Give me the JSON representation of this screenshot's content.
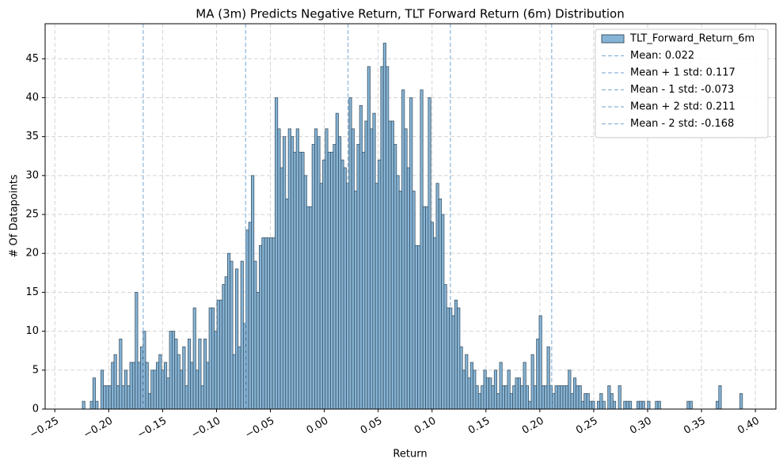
{
  "chart_data": {
    "type": "histogram",
    "title": "MA (3m) Predicts Negative Return, TLT Forward Return (6m) Distribution",
    "x_label": "Return",
    "y_label": "# Of Datapoints",
    "series": [
      {
        "name": "TLT_Forward_Return_6m",
        "color": "#86b4d6",
        "edgecolor": "#3d5566",
        "bins": [
          -0.2245,
          -0.22205,
          -0.2196,
          -0.21715,
          -0.2147,
          -0.21225,
          -0.2098,
          -0.20735,
          -0.2049,
          -0.20245,
          -0.2,
          -0.19755,
          -0.1951,
          -0.19265,
          -0.1902,
          -0.18775,
          -0.1853,
          -0.18285,
          -0.1804,
          -0.17795,
          -0.1755,
          -0.17305,
          -0.1706,
          -0.16815,
          -0.1657,
          -0.16325,
          -0.1608,
          -0.15835,
          -0.1559,
          -0.15345,
          -0.151,
          -0.14855,
          -0.1461,
          -0.14365,
          -0.1412,
          -0.13875,
          -0.1363,
          -0.13385,
          -0.1314,
          -0.12895,
          -0.1265,
          -0.12405,
          -0.1216,
          -0.11915,
          -0.1167,
          -0.11425,
          -0.1118,
          -0.10935,
          -0.1069,
          -0.10445,
          -0.102,
          -0.09955,
          -0.0971,
          -0.09465,
          -0.0922,
          -0.08975,
          -0.0873,
          -0.08485,
          -0.0824,
          -0.07995,
          -0.0775,
          -0.07505,
          -0.0726,
          -0.07015,
          -0.0677,
          -0.06525,
          -0.0628,
          -0.06035,
          -0.0579,
          -0.05545,
          -0.053,
          -0.05055,
          -0.0481,
          -0.04565,
          -0.0432,
          -0.04075,
          -0.0383,
          -0.03585,
          -0.0334,
          -0.03095,
          -0.0285,
          -0.02605,
          -0.0236,
          -0.02115,
          -0.0187,
          -0.01625,
          -0.0138,
          -0.01135,
          -0.0089,
          -0.00645,
          -0.004,
          -0.00155,
          0.0009,
          0.00335,
          0.0058,
          0.00825,
          0.0107,
          0.01315,
          0.0156,
          0.01805,
          0.0205,
          0.02295,
          0.0254,
          0.02785,
          0.0303,
          0.03275,
          0.0352,
          0.03765,
          0.0401,
          0.04255,
          0.045,
          0.04745,
          0.0499,
          0.05235,
          0.0548,
          0.05725,
          0.0597,
          0.06215,
          0.0646,
          0.06705,
          0.0695,
          0.07195,
          0.0744,
          0.07685,
          0.0793,
          0.08175,
          0.0842,
          0.08665,
          0.0891,
          0.09155,
          0.094,
          0.09645,
          0.0989,
          0.10135,
          0.1038,
          0.10625,
          0.1087,
          0.11115,
          0.1136,
          0.11605,
          0.1185,
          0.12095,
          0.1234,
          0.12585,
          0.1283,
          0.13075,
          0.1332,
          0.13565,
          0.1381,
          0.14055,
          0.143,
          0.14545,
          0.1479,
          0.15035,
          0.1528,
          0.15525,
          0.1577,
          0.16015,
          0.1626,
          0.16505,
          0.1675,
          0.16995,
          0.1724,
          0.17485,
          0.1773,
          0.17975,
          0.1822,
          0.18465,
          0.1871,
          0.18955,
          0.192,
          0.19445,
          0.1969,
          0.19935,
          0.2018,
          0.20425,
          0.2067,
          0.20915,
          0.2116,
          0.21405,
          0.2165,
          0.21895,
          0.2214,
          0.22385,
          0.2263,
          0.22875,
          0.2312,
          0.23365,
          0.2361,
          0.23855,
          0.241,
          0.24345,
          0.2459,
          0.24835,
          0.2508,
          0.25325,
          0.2557,
          0.25815,
          0.2606,
          0.26305,
          0.2655,
          0.26795,
          0.2704,
          0.27285,
          0.2753,
          0.27775,
          0.2802,
          0.28265,
          0.2851,
          0.28755,
          0.29,
          0.29245,
          0.2949,
          0.29735,
          0.2998,
          0.30225,
          0.3047,
          0.30715,
          0.3096,
          0.31205,
          0.3145,
          0.31695,
          0.3194,
          0.32185,
          0.3243,
          0.32675,
          0.3292,
          0.33165,
          0.3341,
          0.33655,
          0.339,
          0.34145,
          0.3439,
          0.34635,
          0.3488,
          0.35125,
          0.3537,
          0.35615,
          0.3586,
          0.36105,
          0.3635,
          0.36595,
          0.3684,
          0.37085,
          0.3733,
          0.37575,
          0.3782,
          0.38065,
          0.3831,
          0.38555,
          0.388
        ],
        "values": [
          1,
          0,
          0,
          1,
          4,
          1,
          0,
          5,
          3,
          3,
          3,
          6,
          7,
          3,
          9,
          3,
          5,
          3,
          6,
          6,
          15,
          6,
          8,
          10,
          6,
          2,
          5,
          5,
          6,
          7,
          5,
          6,
          4,
          10,
          10,
          9,
          7,
          5,
          8,
          3,
          9,
          6,
          13,
          5,
          9,
          3,
          9,
          6,
          13,
          13,
          10,
          14,
          14,
          16,
          17,
          20,
          19,
          7,
          18,
          8,
          19,
          11,
          23,
          24,
          30,
          19,
          15,
          21,
          22,
          22,
          22,
          22,
          22,
          40,
          36,
          31,
          35,
          27,
          36,
          35,
          33,
          36,
          33,
          33,
          30,
          26,
          26,
          34,
          36,
          35,
          29,
          32,
          36,
          33,
          33,
          34,
          38,
          35,
          32,
          31,
          29,
          40,
          36,
          28,
          34,
          39,
          33,
          37,
          44,
          36,
          38,
          29,
          32,
          44,
          47,
          44,
          37,
          37,
          34,
          30,
          28,
          41,
          36,
          31,
          40,
          28,
          21,
          21,
          41,
          26,
          26,
          40,
          24,
          22,
          29,
          27,
          25,
          16,
          13,
          13,
          12,
          14,
          13,
          8,
          5,
          7,
          4,
          6,
          5,
          3,
          2,
          3,
          5,
          4,
          4,
          3,
          5,
          2,
          6,
          3,
          3,
          5,
          2,
          3,
          4,
          4,
          3,
          6,
          3,
          1,
          7,
          3,
          9,
          12,
          3,
          3,
          8,
          3,
          2,
          3,
          3,
          3,
          3,
          3,
          5,
          2,
          4,
          3,
          3,
          1,
          2,
          2,
          1,
          1,
          0,
          1,
          2,
          1,
          0,
          3,
          2,
          1,
          0,
          3,
          0,
          1,
          1,
          1,
          0,
          0,
          1,
          1,
          1,
          0,
          1,
          0,
          0,
          1,
          1,
          0,
          0,
          0,
          0,
          0,
          0,
          0,
          0,
          0,
          0,
          1,
          1,
          0,
          0,
          0,
          0,
          0,
          0,
          0,
          0,
          0,
          1,
          3,
          0,
          0,
          0,
          0,
          0,
          0,
          0,
          2
        ]
      }
    ],
    "vlines": [
      {
        "name": "Mean: 0.022",
        "value": 0.022,
        "color": "#8ab4d8"
      },
      {
        "name": "Mean + 1 std: 0.117",
        "value": 0.117,
        "color": "#8ab4d8"
      },
      {
        "name": "Mean - 1 std: -0.073",
        "value": -0.073,
        "color": "#8ab4d8"
      },
      {
        "name": "Mean + 2 std: 0.211",
        "value": 0.211,
        "color": "#8ab4d8"
      },
      {
        "name": "Mean - 2 std: -0.168",
        "value": -0.168,
        "color": "#8ab4d8"
      }
    ],
    "xlim": [
      -0.259,
      0.419
    ],
    "ylim": [
      0,
      49.5
    ],
    "xticks": [
      {
        "value": -0.25,
        "label": "−0.25"
      },
      {
        "value": -0.2,
        "label": "−0.20"
      },
      {
        "value": -0.15,
        "label": "−0.15"
      },
      {
        "value": -0.1,
        "label": "−0.10"
      },
      {
        "value": -0.05,
        "label": "−0.05"
      },
      {
        "value": 0,
        "label": "0.00"
      },
      0.05,
      {
        "value": 0.1,
        "label": "0.10"
      },
      0.15,
      {
        "value": 0.2,
        "label": "0.20"
      },
      0.25,
      {
        "value": 0.3,
        "label": "0.30"
      },
      0.35,
      {
        "value": 0.4,
        "label": "0.40"
      }
    ],
    "yticks": [
      0,
      5,
      10,
      15,
      20,
      25,
      30,
      35,
      40,
      45
    ],
    "grid": true,
    "legend": "upper right"
  }
}
